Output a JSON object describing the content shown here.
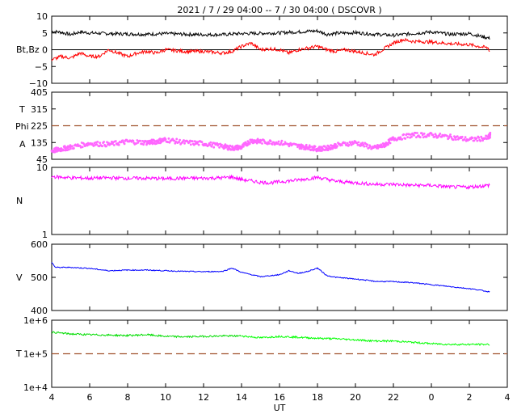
{
  "title": "2021 /  7 / 29   04:00 --  7 / 30   04:00 ( DSCOVR )",
  "chart_data": [
    {
      "id": "p1",
      "type": "line",
      "ylabel": "Bt,Bz",
      "ylim": [
        -10,
        10
      ],
      "yticks": [
        "10",
        "5",
        "0",
        "−5",
        "−10"
      ],
      "ref_line": 0,
      "series": [
        {
          "key": "bt",
          "color": "#000000",
          "x": [
            4,
            4.5,
            5,
            5.5,
            6,
            7,
            8,
            9,
            10,
            11,
            12,
            13,
            13.5,
            14,
            15,
            16,
            16.5,
            17,
            17.5,
            18,
            18.5,
            19,
            20,
            21,
            22,
            23,
            0,
            1,
            2,
            3,
            3.1
          ],
          "y": [
            5.5,
            5.2,
            4.5,
            5.3,
            5,
            4.8,
            4.7,
            4.6,
            4.8,
            4.6,
            4.5,
            4.5,
            4.7,
            4.8,
            4.9,
            5,
            5.2,
            5.3,
            5.5,
            5.6,
            4.6,
            4.9,
            5.1,
            4.6,
            4.3,
            4.8,
            5.3,
            4.6,
            4.8,
            3.5,
            3.3
          ]
        },
        {
          "key": "bz",
          "color": "#ff0000",
          "x": [
            4,
            4.5,
            5,
            5.5,
            6,
            6.5,
            7,
            7.5,
            8,
            8.5,
            9,
            9.5,
            10,
            11,
            12,
            13,
            13.5,
            14,
            14.5,
            15,
            15.5,
            16,
            16.5,
            17,
            17.5,
            18,
            18.5,
            19,
            19.5,
            20,
            21,
            22,
            22.5,
            23,
            0,
            1,
            2,
            3,
            3.1
          ],
          "y": [
            -3,
            -2,
            -2.5,
            -1,
            -2,
            -2,
            0,
            -1,
            -2,
            -1,
            -0.5,
            -1,
            0,
            -0.5,
            -0.5,
            -1,
            -0.5,
            1,
            2,
            0,
            0.3,
            0,
            -1,
            0,
            0.5,
            1,
            0,
            -0.5,
            0,
            -0.5,
            -1.5,
            2,
            3,
            2.5,
            2.3,
            1.8,
            1.5,
            0.5,
            -1
          ]
        }
      ]
    },
    {
      "id": "p2",
      "type": "scatter",
      "ylabels": [
        "T",
        "Phi",
        "A"
      ],
      "ylim": [
        45,
        405
      ],
      "yticks": [
        "405",
        "315",
        "225",
        "135",
        "45"
      ],
      "ref_line": 225,
      "series": [
        {
          "key": "phi",
          "color": "#ff66ff",
          "x": [
            4,
            4.5,
            5,
            6,
            7,
            8,
            9,
            9.5,
            10,
            11,
            12,
            13,
            13.5,
            14,
            14.5,
            15,
            16,
            17,
            17.5,
            18,
            18.5,
            19,
            20,
            21,
            21.5,
            22,
            23,
            0,
            1,
            2,
            3,
            3.1
          ],
          "y": [
            90,
            100,
            110,
            130,
            125,
            140,
            135,
            140,
            150,
            135,
            130,
            115,
            105,
            110,
            145,
            140,
            135,
            115,
            110,
            100,
            105,
            120,
            135,
            105,
            120,
            155,
            175,
            175,
            165,
            150,
            160,
            175
          ]
        }
      ]
    },
    {
      "id": "p3",
      "type": "line",
      "scale": "log",
      "ylabel": "N",
      "ylim": [
        1,
        10
      ],
      "yticks": [
        "10",
        "1"
      ],
      "series": [
        {
          "key": "n",
          "color": "#ff00ff",
          "x": [
            4,
            5,
            6,
            7,
            8,
            9,
            10,
            11,
            12,
            13,
            13.5,
            14,
            15,
            15.5,
            16,
            17,
            18,
            19,
            20,
            21,
            22,
            23,
            0,
            1,
            2,
            3,
            3.1
          ],
          "y": [
            7.3,
            7.0,
            6.9,
            7.0,
            6.9,
            6.9,
            6.8,
            6.9,
            6.9,
            7.0,
            7.2,
            6.6,
            6.0,
            5.9,
            6.1,
            6.5,
            7.1,
            6.2,
            5.9,
            5.6,
            5.6,
            5.4,
            5.4,
            5.1,
            5.1,
            5.4,
            5.6
          ]
        }
      ]
    },
    {
      "id": "p4",
      "type": "line",
      "ylabel": "V",
      "ylim": [
        400,
        600
      ],
      "yticks": [
        "600",
        "500",
        "400"
      ],
      "series": [
        {
          "key": "v",
          "color": "#0000ff",
          "x": [
            4,
            4.2,
            5,
            6,
            7,
            8,
            9,
            10,
            11,
            12,
            13,
            13.5,
            14,
            15,
            16,
            16.5,
            17,
            17.5,
            18,
            18.5,
            19,
            20,
            20.5,
            21,
            22,
            23,
            0,
            1,
            2,
            2.5,
            3,
            3.1
          ],
          "y": [
            545,
            530,
            530,
            527,
            520,
            522,
            522,
            520,
            518,
            517,
            518,
            528,
            515,
            502,
            508,
            520,
            512,
            518,
            528,
            505,
            500,
            495,
            492,
            488,
            487,
            484,
            478,
            472,
            466,
            462,
            457,
            458
          ]
        }
      ]
    },
    {
      "id": "p5",
      "type": "line",
      "scale": "log",
      "ylabel": "T",
      "ylim": [
        10000,
        1000000
      ],
      "yticks": [
        "1e+6",
        "1e+5",
        "1e+4"
      ],
      "ref_line": 100000,
      "series": [
        {
          "key": "t_early",
          "color": "#00dd00",
          "x": [
            4,
            5,
            6,
            7,
            8,
            9,
            10,
            11,
            12,
            13,
            14
          ],
          "y": [
            440000,
            390000,
            370000,
            360000,
            350000,
            370000,
            330000,
            320000,
            330000,
            340000,
            340000
          ]
        },
        {
          "key": "t_late",
          "color": "#00ff00",
          "x": [
            14,
            15,
            16,
            17,
            18,
            19,
            20,
            21,
            22,
            23,
            0,
            1,
            2,
            3,
            3.1
          ],
          "y": [
            340000,
            300000,
            330000,
            310000,
            290000,
            280000,
            260000,
            240000,
            240000,
            220000,
            200000,
            190000,
            190000,
            190000,
            190000
          ]
        }
      ]
    }
  ],
  "x_axis": {
    "label": "UT",
    "ticks": [
      "4",
      "6",
      "8",
      "10",
      "12",
      "14",
      "16",
      "18",
      "20",
      "22",
      "0",
      "2",
      "4"
    ]
  }
}
